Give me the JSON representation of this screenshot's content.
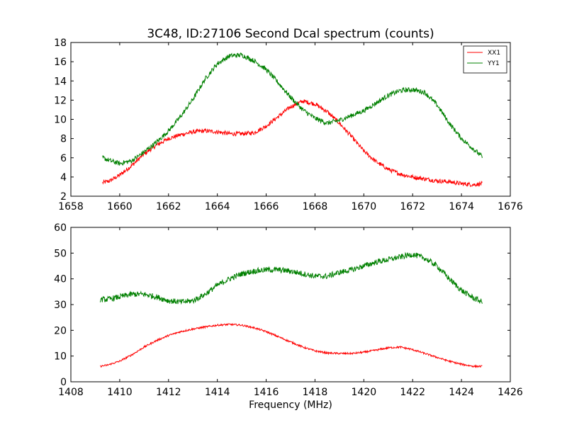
{
  "chart_data": [
    {
      "type": "line",
      "title": "3C48, ID:27106 Second Dcal spectrum (counts)",
      "xlabel": "",
      "ylabel": "",
      "xlim": [
        1658,
        1676
      ],
      "ylim": [
        2,
        18
      ],
      "xticks": [
        "1658",
        "1660",
        "1662",
        "1664",
        "1666",
        "1668",
        "1670",
        "1672",
        "1674",
        "1676"
      ],
      "yticks": [
        "2",
        "4",
        "6",
        "8",
        "10",
        "12",
        "14",
        "16",
        "18"
      ],
      "grid": false,
      "legend": "top-right",
      "series": [
        {
          "name": "XX1",
          "color": "#ff0000",
          "noise": 0.22,
          "x": [
            1659.3,
            1659.6,
            1660.0,
            1660.5,
            1661.0,
            1661.5,
            1662.0,
            1662.5,
            1663.0,
            1663.5,
            1664.0,
            1664.5,
            1665.0,
            1665.5,
            1666.0,
            1666.5,
            1667.0,
            1667.5,
            1668.0,
            1668.5,
            1669.0,
            1669.5,
            1670.0,
            1670.5,
            1671.0,
            1671.5,
            1672.0,
            1672.5,
            1673.0,
            1673.5,
            1674.0,
            1674.5,
            1674.85
          ],
          "values": [
            3.4,
            3.6,
            4.2,
            5.2,
            6.4,
            7.3,
            8.0,
            8.4,
            8.7,
            8.8,
            8.7,
            8.5,
            8.5,
            8.6,
            9.3,
            10.3,
            11.3,
            11.9,
            11.6,
            10.8,
            9.6,
            8.2,
            6.7,
            5.6,
            4.8,
            4.3,
            4.0,
            3.8,
            3.6,
            3.5,
            3.3,
            3.2,
            3.3
          ]
        },
        {
          "name": "YY1",
          "color": "#008000",
          "noise": 0.25,
          "x": [
            1659.3,
            1659.6,
            1660.0,
            1660.5,
            1661.0,
            1661.5,
            1662.0,
            1662.5,
            1663.0,
            1663.5,
            1664.0,
            1664.5,
            1665.0,
            1665.5,
            1666.0,
            1666.5,
            1667.0,
            1667.5,
            1668.0,
            1668.5,
            1669.0,
            1669.5,
            1670.0,
            1670.5,
            1671.0,
            1671.5,
            1672.0,
            1672.5,
            1673.0,
            1673.5,
            1674.0,
            1674.5,
            1674.85
          ],
          "values": [
            6.0,
            5.7,
            5.4,
            5.7,
            6.6,
            7.6,
            8.8,
            10.3,
            12.1,
            14.2,
            15.8,
            16.6,
            16.7,
            16.1,
            15.2,
            13.8,
            12.3,
            11.0,
            10.1,
            9.6,
            9.9,
            10.4,
            10.9,
            11.7,
            12.5,
            13.0,
            13.1,
            12.8,
            11.5,
            9.6,
            8.0,
            6.9,
            6.1
          ]
        }
      ]
    },
    {
      "type": "line",
      "title": "",
      "xlabel": "Frequency (MHz)",
      "ylabel": "",
      "xlim": [
        1408,
        1426
      ],
      "ylim": [
        0,
        60
      ],
      "xticks": [
        "1408",
        "1410",
        "1412",
        "1414",
        "1416",
        "1418",
        "1420",
        "1422",
        "1424",
        "1426"
      ],
      "yticks": [
        "0",
        "10",
        "20",
        "30",
        "40",
        "50",
        "60"
      ],
      "grid": false,
      "legend": "none",
      "series": [
        {
          "color": "#ff0000",
          "noise": 0.35,
          "x": [
            1409.2,
            1409.5,
            1410.0,
            1410.5,
            1411.0,
            1411.5,
            1412.0,
            1412.5,
            1413.0,
            1413.5,
            1414.0,
            1414.5,
            1415.0,
            1415.5,
            1416.0,
            1416.5,
            1417.0,
            1417.5,
            1418.0,
            1418.5,
            1419.0,
            1419.5,
            1420.0,
            1420.5,
            1421.0,
            1421.5,
            1422.0,
            1422.5,
            1423.0,
            1423.5,
            1424.0,
            1424.5,
            1424.85
          ],
          "values": [
            6.0,
            6.5,
            8.0,
            10.5,
            13.5,
            16.0,
            18.0,
            19.5,
            20.5,
            21.3,
            22.0,
            22.3,
            22.0,
            21.0,
            19.5,
            17.5,
            15.5,
            13.5,
            12.0,
            11.2,
            11.0,
            11.0,
            11.5,
            12.3,
            13.2,
            13.5,
            12.5,
            11.0,
            9.5,
            8.0,
            6.8,
            6.0,
            6.0
          ]
        },
        {
          "color": "#008000",
          "noise": 1.1,
          "x": [
            1409.2,
            1409.5,
            1410.0,
            1410.5,
            1411.0,
            1411.5,
            1412.0,
            1412.5,
            1413.0,
            1413.5,
            1414.0,
            1414.5,
            1415.0,
            1415.5,
            1416.0,
            1416.5,
            1417.0,
            1417.5,
            1418.0,
            1418.5,
            1419.0,
            1419.5,
            1420.0,
            1420.5,
            1421.0,
            1421.5,
            1422.0,
            1422.5,
            1423.0,
            1423.5,
            1424.0,
            1424.5,
            1424.85
          ],
          "values": [
            32.0,
            32.0,
            33.0,
            34.0,
            34.0,
            33.0,
            31.5,
            31.0,
            31.5,
            34.0,
            37.5,
            40.0,
            42.0,
            43.0,
            43.5,
            43.5,
            43.0,
            42.0,
            41.0,
            41.0,
            42.5,
            43.5,
            45.0,
            46.5,
            47.5,
            48.5,
            49.5,
            48.0,
            45.0,
            40.0,
            35.5,
            32.5,
            31.0
          ]
        }
      ]
    }
  ]
}
